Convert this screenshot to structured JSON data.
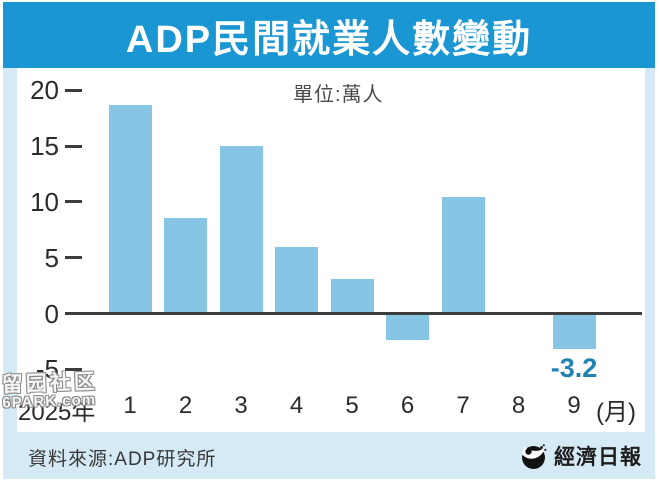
{
  "title_bar": {
    "title": "ADP民間就業人數變動"
  },
  "chart_data": {
    "type": "bar",
    "title": "ADP民間就業人數變動",
    "unit_label": "單位:萬人",
    "x_axis_prefix": "2025年",
    "x_axis_suffix": "(月)",
    "categories": [
      "1",
      "2",
      "3",
      "4",
      "5",
      "6",
      "7",
      "8",
      "9"
    ],
    "values": [
      18.7,
      8.6,
      15.0,
      6.0,
      3.1,
      -2.4,
      10.4,
      0,
      -3.2
    ],
    "data_label": {
      "index": 8,
      "text": "-3.2"
    },
    "y_ticks": [
      20,
      15,
      10,
      5,
      0,
      -5
    ],
    "ylim": [
      -5,
      20
    ],
    "grid": false,
    "legend": "none",
    "bar_color": "#86c5e4",
    "negative_label_color": "#1e83b4"
  },
  "watermark": {
    "line1": "留园社区",
    "line2": "6PARK.com"
  },
  "footer": {
    "source": "資料來源:ADP研究所",
    "brand": "經濟日報",
    "brand_logo": "economic-daily-logo"
  },
  "colors": {
    "title_bar_bg": "#1a96d3",
    "page_bg": "#d6eaf5",
    "panel_bg": "#ffffff",
    "bar_fill": "#86c5e4",
    "axis_line": "#3d3d3d",
    "axis_text": "#2b2b2b"
  }
}
